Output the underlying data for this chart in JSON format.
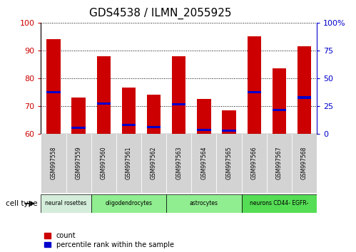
{
  "title": "GDS4538 / ILMN_2055925",
  "samples": [
    "GSM997558",
    "GSM997559",
    "GSM997560",
    "GSM997561",
    "GSM997562",
    "GSM997563",
    "GSM997564",
    "GSM997565",
    "GSM997566",
    "GSM997567",
    "GSM997568"
  ],
  "red_values": [
    94.0,
    73.0,
    88.0,
    76.5,
    74.0,
    88.0,
    72.5,
    68.5,
    95.0,
    83.5,
    91.5
  ],
  "blue_values": [
    75.0,
    62.0,
    70.8,
    63.0,
    62.3,
    70.5,
    61.3,
    61.0,
    75.0,
    68.5,
    73.0
  ],
  "ylim_left": [
    60,
    100
  ],
  "ylim_right": [
    0,
    100
  ],
  "yticks_left": [
    60,
    70,
    80,
    90,
    100
  ],
  "yticks_right": [
    0,
    25,
    50,
    75,
    100
  ],
  "cell_types": [
    {
      "label": "neural rosettes",
      "start": 0,
      "end": 2,
      "color": "#d4edda"
    },
    {
      "label": "oligodendrocytes",
      "start": 2,
      "end": 5,
      "color": "#90ee90"
    },
    {
      "label": "astrocytes",
      "start": 5,
      "end": 8,
      "color": "#90ee90"
    },
    {
      "label": "neurons CD44- EGFR-",
      "start": 8,
      "end": 11,
      "color": "#55dd55"
    }
  ],
  "bar_color": "#cc0000",
  "blue_color": "#0000cc",
  "title_fontsize": 11,
  "left_tick_color": "#cc0000",
  "right_tick_color": "#0000cc"
}
